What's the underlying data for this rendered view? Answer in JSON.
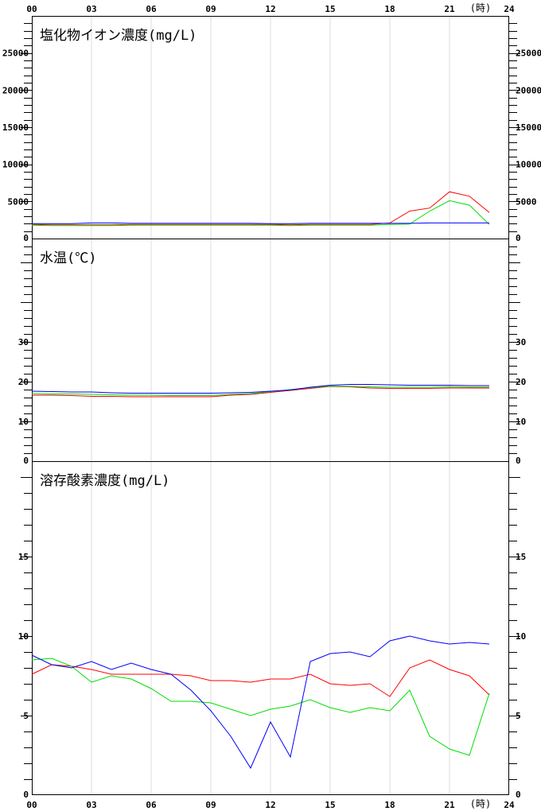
{
  "time_axis": {
    "ticks": [
      "00",
      "03",
      "06",
      "09",
      "12",
      "15",
      "18",
      "21",
      "24"
    ],
    "unit_label": "(時)"
  },
  "series_colors": [
    "#ff0000",
    "#00dd00",
    "#0000ff"
  ],
  "chart_data": [
    {
      "type": "line",
      "title": "塩化物イオン濃度(mg/L)",
      "ylim": [
        0,
        30000
      ],
      "yticks": [
        "0",
        "5000",
        "10000",
        "15000",
        "20000",
        "25000"
      ],
      "x": [
        0,
        1,
        2,
        3,
        4,
        5,
        6,
        7,
        8,
        9,
        10,
        11,
        12,
        13,
        14,
        15,
        16,
        17,
        18,
        19,
        20,
        21,
        22,
        23
      ],
      "series": [
        {
          "color": "#ff0000",
          "values": [
            1900,
            1850,
            1850,
            1850,
            1850,
            1900,
            1900,
            1900,
            1900,
            1900,
            1900,
            1900,
            1900,
            1850,
            1900,
            1900,
            1900,
            1900,
            2100,
            3700,
            4100,
            6300,
            5700,
            3500
          ]
        },
        {
          "color": "#00dd00",
          "values": [
            1800,
            1750,
            1750,
            1750,
            1750,
            1800,
            1800,
            1800,
            1800,
            1800,
            1800,
            1800,
            1800,
            1750,
            1800,
            1800,
            1800,
            1800,
            1900,
            1950,
            3700,
            5100,
            4500,
            1900
          ]
        },
        {
          "color": "#0000ff",
          "values": [
            2000,
            2000,
            2000,
            2100,
            2100,
            2050,
            2050,
            2050,
            2050,
            2050,
            2050,
            2050,
            2000,
            2000,
            2050,
            2050,
            2050,
            2050,
            2050,
            2050,
            2100,
            2100,
            2100,
            2100
          ]
        }
      ]
    },
    {
      "type": "line",
      "title": "水温(℃)",
      "ylim": [
        0,
        56
      ],
      "yticks": [
        "0",
        "10",
        "20",
        "30"
      ],
      "x": [
        0,
        1,
        2,
        3,
        4,
        5,
        6,
        7,
        8,
        9,
        10,
        11,
        12,
        13,
        14,
        15,
        16,
        17,
        18,
        19,
        20,
        21,
        22,
        23
      ],
      "series": [
        {
          "color": "#ff0000",
          "values": [
            16.6,
            16.6,
            16.5,
            16.3,
            16.3,
            16.2,
            16.2,
            16.2,
            16.2,
            16.2,
            16.6,
            16.8,
            17.3,
            17.8,
            18.3,
            18.8,
            18.7,
            18.4,
            18.3,
            18.3,
            18.3,
            18.4,
            18.4,
            18.4
          ]
        },
        {
          "color": "#00dd00",
          "values": [
            17.0,
            16.9,
            16.9,
            16.8,
            16.7,
            16.6,
            16.6,
            16.5,
            16.5,
            16.5,
            16.8,
            17.0,
            17.5,
            18.0,
            18.5,
            18.9,
            18.8,
            18.7,
            18.6,
            18.6,
            18.6,
            18.7,
            18.6,
            18.6
          ]
        },
        {
          "color": "#0000ff",
          "values": [
            17.6,
            17.5,
            17.4,
            17.4,
            17.2,
            17.1,
            17.1,
            17.1,
            17.1,
            17.1,
            17.2,
            17.3,
            17.6,
            17.9,
            18.6,
            19.1,
            19.3,
            19.3,
            19.2,
            19.1,
            19.1,
            19.1,
            19.0,
            19.0
          ]
        }
      ]
    },
    {
      "type": "line",
      "title": "溶存酸素濃度(mg/L)",
      "ylim": [
        0,
        21
      ],
      "yticks": [
        "0",
        "5",
        "10",
        "15"
      ],
      "x": [
        0,
        1,
        2,
        3,
        4,
        5,
        6,
        7,
        8,
        9,
        10,
        11,
        12,
        13,
        14,
        15,
        16,
        17,
        18,
        19,
        20,
        21,
        22,
        23
      ],
      "series": [
        {
          "color": "#ff0000",
          "values": [
            7.6,
            8.2,
            8.1,
            7.9,
            7.6,
            7.6,
            7.6,
            7.6,
            7.5,
            7.2,
            7.2,
            7.1,
            7.3,
            7.3,
            7.6,
            7.0,
            6.9,
            7.0,
            6.2,
            8.0,
            8.5,
            7.9,
            7.5,
            6.3
          ]
        },
        {
          "color": "#00dd00",
          "values": [
            8.5,
            8.6,
            8.1,
            7.1,
            7.5,
            7.3,
            6.7,
            5.9,
            5.9,
            5.8,
            5.4,
            5.0,
            5.4,
            5.6,
            6.0,
            5.5,
            5.2,
            5.5,
            5.3,
            6.6,
            3.7,
            2.9,
            2.5,
            6.4
          ]
        },
        {
          "color": "#0000ff",
          "values": [
            8.8,
            8.2,
            8.0,
            8.4,
            7.9,
            8.3,
            7.9,
            7.6,
            6.6,
            5.3,
            3.7,
            1.7,
            4.6,
            2.4,
            8.4,
            8.9,
            9.0,
            8.7,
            9.7,
            10.0,
            9.7,
            9.5,
            9.6,
            9.5
          ]
        }
      ]
    }
  ]
}
